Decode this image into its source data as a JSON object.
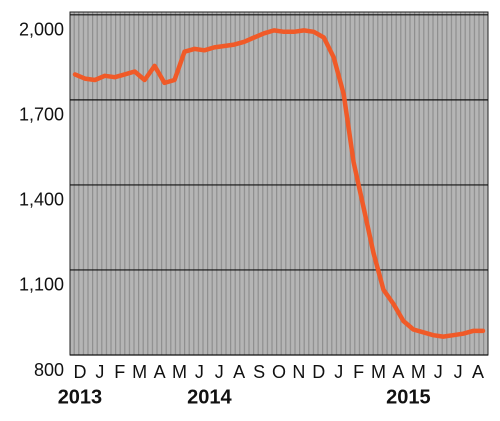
{
  "chart_data": {
    "type": "line",
    "categories": [
      "D",
      null,
      "J",
      null,
      "F",
      null,
      "M",
      null,
      "A",
      null,
      "M",
      null,
      "J",
      null,
      "J",
      null,
      "A",
      null,
      "S",
      null,
      "O",
      null,
      "N",
      null,
      "D",
      null,
      "J",
      null,
      "F",
      null,
      "M",
      null,
      "A",
      null,
      "M",
      null,
      "J",
      null,
      "J",
      null,
      "A",
      null
    ],
    "year_labels": [
      "2013",
      null,
      null,
      null,
      null,
      null,
      null,
      null,
      null,
      null,
      null,
      null,
      null,
      "2014",
      null,
      null,
      null,
      null,
      null,
      null,
      null,
      null,
      null,
      null,
      null,
      null,
      null,
      null,
      null,
      null,
      null,
      null,
      null,
      "2015",
      null,
      null,
      null,
      null,
      null,
      null,
      null,
      null
    ],
    "series": [
      {
        "color": "#f05a28",
        "values": [
          1790,
          1775,
          1770,
          1785,
          1780,
          1790,
          1800,
          1770,
          1820,
          1760,
          1770,
          1870,
          1880,
          1875,
          1885,
          1890,
          1895,
          1905,
          1920,
          1935,
          1945,
          1940,
          1940,
          1945,
          1940,
          1920,
          1850,
          1720,
          1480,
          1320,
          1160,
          1030,
          980,
          920,
          890,
          880,
          870,
          865,
          870,
          875,
          885,
          885
        ]
      }
    ],
    "ylim": [
      800,
      2010
    ],
    "yticks": [
      800,
      {
        "value": 1100,
        "label": "1,100"
      },
      {
        "value": 1400,
        "label": "1,400"
      },
      {
        "value": 1700,
        "label": "1,700"
      },
      {
        "value": 2000,
        "label": "2,000"
      }
    ],
    "grid": true,
    "background": "#b5b5b5"
  }
}
